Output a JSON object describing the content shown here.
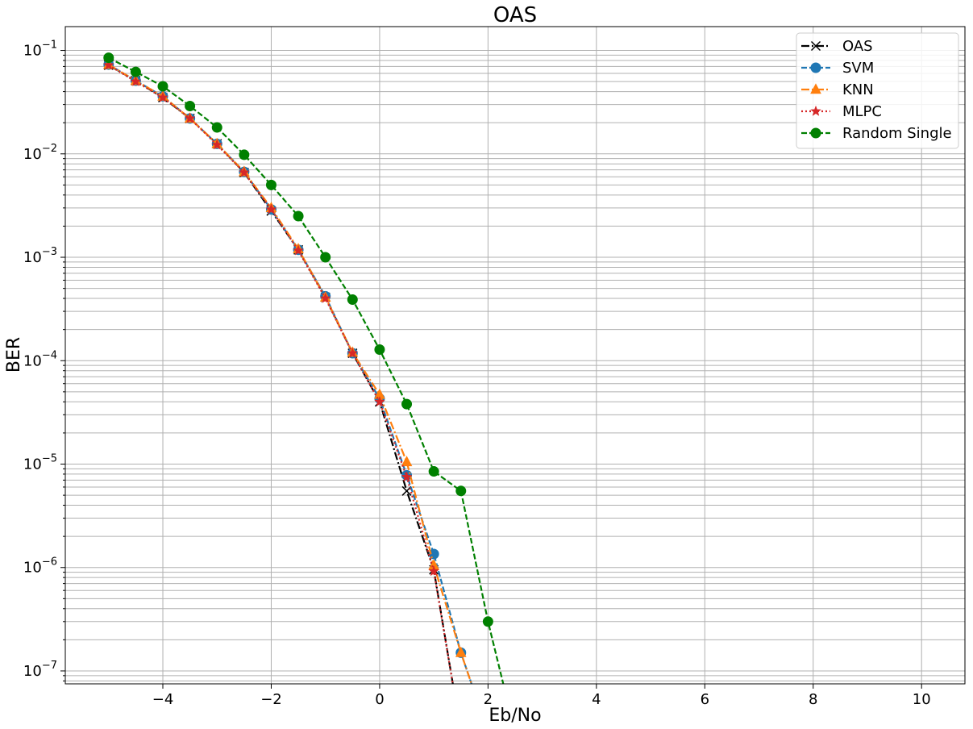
{
  "chart_data": {
    "type": "line",
    "title": "OAS",
    "xlabel": "Eb/No",
    "ylabel": "BER",
    "xscale": "linear",
    "yscale": "log",
    "xlim": [
      -5.8,
      10.8
    ],
    "ylim": [
      7.5e-08,
      0.17
    ],
    "xticks": [
      -4,
      -2,
      0,
      2,
      4,
      6,
      8,
      10
    ],
    "xtick_labels": [
      "−4",
      "−2",
      "0",
      "2",
      "4",
      "6",
      "8",
      "10"
    ],
    "yticks": [
      1e-07,
      1e-06,
      1e-05,
      0.0001,
      0.001,
      0.01,
      0.1
    ],
    "ytick_labels": [
      {
        "base": "10",
        "exp": "−7"
      },
      {
        "base": "10",
        "exp": "−6"
      },
      {
        "base": "10",
        "exp": "−5"
      },
      {
        "base": "10",
        "exp": "−4"
      },
      {
        "base": "10",
        "exp": "−3"
      },
      {
        "base": "10",
        "exp": "−2"
      },
      {
        "base": "10",
        "exp": "−1"
      }
    ],
    "grid": true,
    "grid_minor": "y",
    "legend_position": "top-right",
    "series": [
      {
        "name": "OAS",
        "color": "#000000",
        "linestyle": "dashdot",
        "marker": "x",
        "x": [
          -5,
          -4.5,
          -4,
          -3.5,
          -3,
          -2.5,
          -2,
          -1.5,
          -1,
          -0.5,
          0,
          0.5,
          1,
          1.5
        ],
        "y": [
          0.072,
          0.051,
          0.035,
          0.022,
          0.0125,
          0.0066,
          0.0028,
          0.00118,
          0.00041,
          0.000118,
          4e-05,
          5.5e-06,
          9.5e-07,
          0
        ]
      },
      {
        "name": "SVM",
        "color": "#1f77b4",
        "linestyle": "dashed",
        "marker": "o",
        "x": [
          -5,
          -4.5,
          -4,
          -3.5,
          -3,
          -2.5,
          -2,
          -1.5,
          -1,
          -0.5,
          0,
          0.5,
          1,
          1.5,
          2
        ],
        "y": [
          0.073,
          0.051,
          0.036,
          0.022,
          0.0125,
          0.0067,
          0.0029,
          0.00118,
          0.00042,
          0.000118,
          4.3e-05,
          7.8e-06,
          1.35e-06,
          1.5e-07,
          0
        ]
      },
      {
        "name": "KNN",
        "color": "#ff7f0e",
        "linestyle": "dashdot",
        "marker": "^",
        "x": [
          -5,
          -4.5,
          -4,
          -3.5,
          -3,
          -2.5,
          -2,
          -1.5,
          -1,
          -0.5,
          0,
          0.5,
          1,
          1.5,
          2
        ],
        "y": [
          0.073,
          0.051,
          0.036,
          0.022,
          0.0125,
          0.0067,
          0.003,
          0.0012,
          0.00041,
          0.00012,
          4.7e-05,
          1.05e-05,
          1.05e-06,
          1.5e-07,
          0
        ]
      },
      {
        "name": "MLPC",
        "color": "#d62728",
        "linestyle": "dotted",
        "marker": "*",
        "x": [
          -5,
          -4.5,
          -4,
          -3.5,
          -3,
          -2.5,
          -2,
          -1.5,
          -1,
          -0.5,
          0,
          0.5,
          1,
          1.5
        ],
        "y": [
          0.072,
          0.05,
          0.035,
          0.022,
          0.0122,
          0.0066,
          0.0029,
          0.00116,
          0.0004,
          0.000118,
          4e-05,
          7.5e-06,
          9.2e-07,
          0
        ]
      },
      {
        "name": "Random Single",
        "color": "#008000",
        "linestyle": "dashed",
        "marker": "o",
        "x": [
          -5,
          -4.5,
          -4,
          -3.5,
          -3,
          -2.5,
          -2,
          -1.5,
          -1,
          -0.5,
          0,
          0.5,
          1,
          1.5,
          2,
          2.5
        ],
        "y": [
          0.085,
          0.062,
          0.045,
          0.029,
          0.018,
          0.0098,
          0.005,
          0.0025,
          0.001,
          0.00039,
          0.000128,
          3.8e-05,
          8.5e-06,
          5.5e-06,
          3e-07,
          0
        ]
      }
    ]
  }
}
